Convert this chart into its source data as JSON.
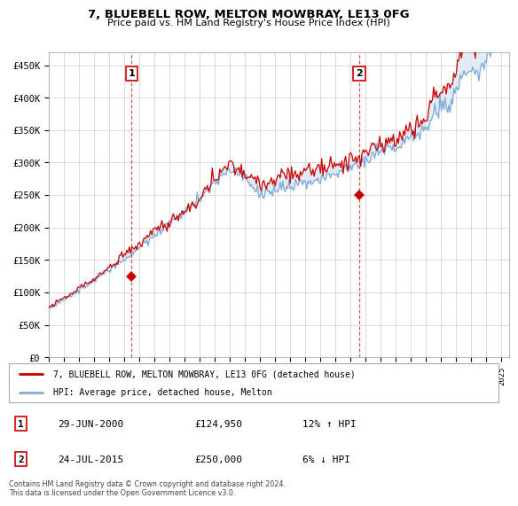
{
  "title": "7, BLUEBELL ROW, MELTON MOWBRAY, LE13 0FG",
  "subtitle": "Price paid vs. HM Land Registry's House Price Index (HPI)",
  "ylabel_ticks": [
    "£0",
    "£50K",
    "£100K",
    "£150K",
    "£200K",
    "£250K",
    "£300K",
    "£350K",
    "£400K",
    "£450K"
  ],
  "ytick_values": [
    0,
    50000,
    100000,
    150000,
    200000,
    250000,
    300000,
    350000,
    400000,
    450000
  ],
  "ylim": [
    0,
    470000
  ],
  "xlim_start": 1995.0,
  "xlim_end": 2025.5,
  "hpi_color": "#7eaadc",
  "price_color": "#cc0000",
  "fill_color": "#dce9f5",
  "transaction1_x": 2000.49,
  "transaction1_y": 124950,
  "transaction1_label": "1",
  "transaction2_x": 2015.56,
  "transaction2_y": 250000,
  "transaction2_label": "2",
  "legend_line1": "7, BLUEBELL ROW, MELTON MOWBRAY, LE13 0FG (detached house)",
  "legend_line2": "HPI: Average price, detached house, Melton",
  "table_row1": [
    "1",
    "29-JUN-2000",
    "£124,950",
    "12% ↑ HPI"
  ],
  "table_row2": [
    "2",
    "24-JUL-2015",
    "£250,000",
    "6% ↓ HPI"
  ],
  "footnote": "Contains HM Land Registry data © Crown copyright and database right 2024.\nThis data is licensed under the Open Government Licence v3.0.",
  "background_color": "#ffffff",
  "grid_color": "#cccccc"
}
